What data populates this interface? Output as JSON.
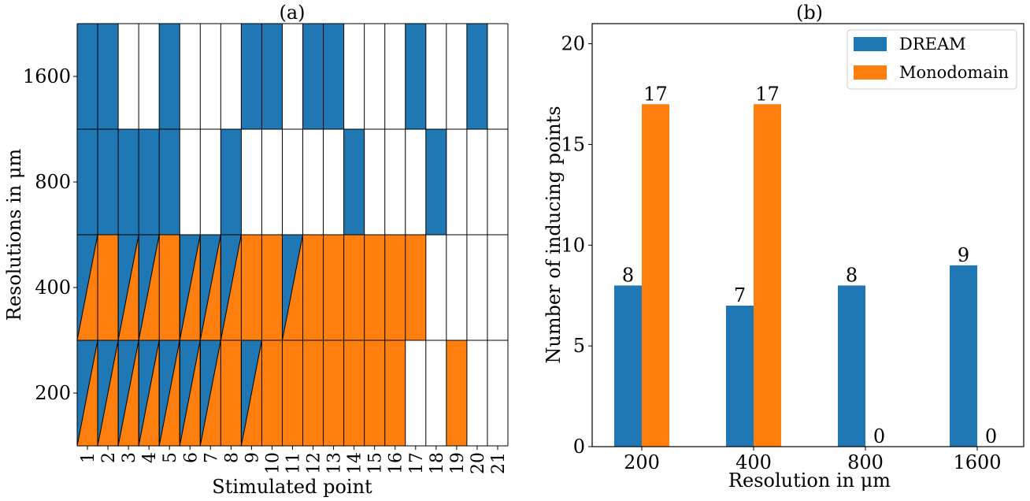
{
  "chart_data": [
    {
      "type": "heatmap",
      "title": "(a)",
      "xlabel": "Stimulated point",
      "ylabel": "Resolutions in μm",
      "x_ticks": [
        "1",
        "2",
        "3",
        "4",
        "5",
        "6",
        "7",
        "8",
        "9",
        "10",
        "11",
        "12",
        "13",
        "14",
        "15",
        "16",
        "17",
        "18",
        "19",
        "20",
        "21"
      ],
      "y_ticks": [
        "200",
        "400",
        "800",
        "1600"
      ],
      "cell_legend": {
        "D": "DREAM only",
        "M": "Monodomain only",
        "B": "both (split diagonally)",
        "N": "neither"
      },
      "rows": [
        {
          "resolution": "200",
          "cells": [
            "B",
            "B",
            "B",
            "B",
            "B",
            "B",
            "B",
            "M",
            "B",
            "M",
            "M",
            "M",
            "M",
            "M",
            "M",
            "M",
            "N",
            "N",
            "M",
            "N",
            "N"
          ]
        },
        {
          "resolution": "400",
          "cells": [
            "B",
            "M",
            "B",
            "B",
            "M",
            "B",
            "B",
            "B",
            "M",
            "M",
            "B",
            "M",
            "M",
            "M",
            "M",
            "M",
            "M",
            "N",
            "N",
            "N",
            "N"
          ]
        },
        {
          "resolution": "800",
          "cells": [
            "D",
            "D",
            "D",
            "D",
            "D",
            "N",
            "N",
            "D",
            "N",
            "N",
            "N",
            "N",
            "N",
            "D",
            "N",
            "N",
            "N",
            "D",
            "N",
            "N",
            "N"
          ]
        },
        {
          "resolution": "1600",
          "cells": [
            "D",
            "D",
            "N",
            "N",
            "D",
            "N",
            "N",
            "N",
            "D",
            "D",
            "N",
            "D",
            "D",
            "N",
            "N",
            "N",
            "D",
            "N",
            "N",
            "D",
            "N"
          ]
        }
      ]
    },
    {
      "type": "bar",
      "title": "(b)",
      "xlabel": "Resolution in μm",
      "ylabel": "Number of inducing points",
      "categories": [
        "200",
        "400",
        "800",
        "1600"
      ],
      "series": [
        {
          "name": "DREAM",
          "values": [
            8,
            7,
            8,
            9
          ]
        },
        {
          "name": "Monodomain",
          "values": [
            17,
            17,
            0,
            0
          ]
        }
      ],
      "ylim": [
        0,
        21
      ],
      "yticks": [
        0,
        5,
        10,
        15,
        20
      ],
      "legend": "top-right"
    }
  ],
  "colors": {
    "dream": "#1f77b4",
    "monodomain": "#ff7f0e"
  }
}
